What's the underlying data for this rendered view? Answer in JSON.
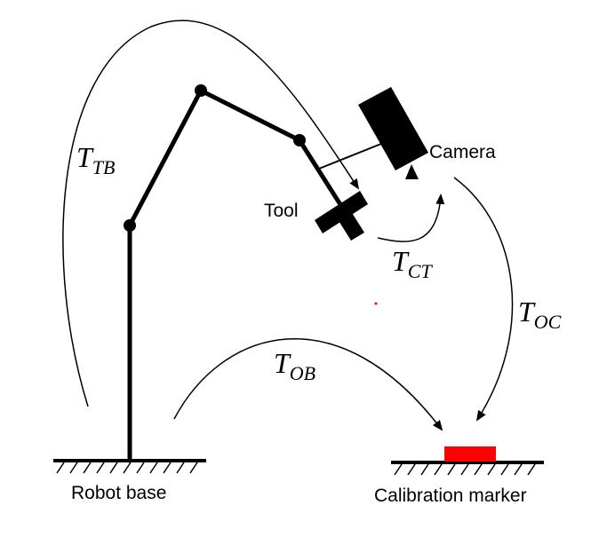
{
  "labels": {
    "camera": "Camera",
    "tool": "Tool",
    "robot_base": "Robot base",
    "calibration_marker": "Calibration marker"
  },
  "transforms": {
    "tb": {
      "symbol": "T",
      "subscript": "TB"
    },
    "ct": {
      "symbol": "T",
      "subscript": "CT"
    },
    "oc": {
      "symbol": "T",
      "subscript": "OC"
    },
    "ob": {
      "symbol": "T",
      "subscript": "OB"
    }
  },
  "colors": {
    "ink": "#000000",
    "marker": "#ff0000"
  }
}
